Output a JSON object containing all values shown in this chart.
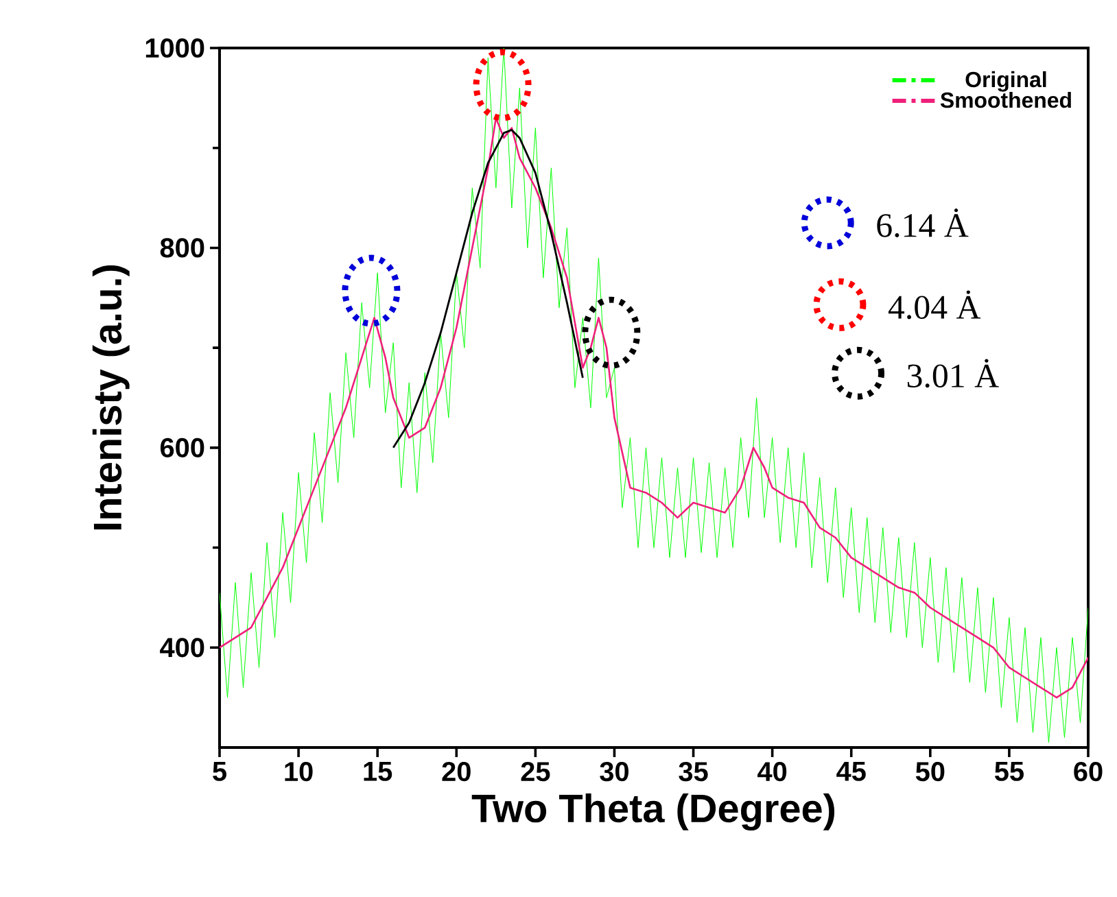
{
  "chart_data": {
    "type": "line",
    "xlabel": "Two Theta (Degree)",
    "ylabel": "Intenisty (a.u.)",
    "xlim": [
      5,
      60
    ],
    "ylim": [
      300,
      1000
    ],
    "xticks": [
      5,
      10,
      15,
      20,
      25,
      30,
      35,
      40,
      45,
      50,
      55,
      60
    ],
    "yticks": [
      400,
      {
        "value": 500,
        "label": null
      },
      600,
      {
        "value": 700,
        "label": null
      },
      800,
      {
        "value": 900,
        "label": null
      },
      1000
    ],
    "legend": "top right",
    "series": [
      {
        "name": "Original",
        "color": "#00ff00",
        "x": [
          5,
          5.5,
          6,
          6.5,
          7,
          7.5,
          8,
          8.5,
          9,
          9.5,
          10,
          10.5,
          11,
          11.5,
          12,
          12.5,
          13,
          13.5,
          14,
          14.5,
          15,
          15.5,
          16,
          16.5,
          17,
          17.5,
          18,
          18.5,
          19,
          19.5,
          20,
          20.5,
          21,
          21.5,
          22,
          22.5,
          23,
          23.5,
          24,
          24.5,
          25,
          25.5,
          26,
          26.5,
          27,
          27.5,
          28,
          28.5,
          29,
          29.5,
          30,
          30.5,
          31,
          31.5,
          32,
          32.5,
          33,
          33.5,
          34,
          34.5,
          35,
          35.5,
          36,
          36.5,
          37,
          37.5,
          38,
          38.5,
          39,
          39.5,
          40,
          40.5,
          41,
          41.5,
          42,
          42.5,
          43,
          43.5,
          44,
          44.5,
          45,
          45.5,
          46,
          46.5,
          47,
          47.5,
          48,
          48.5,
          49,
          49.5,
          50,
          50.5,
          51,
          51.5,
          52,
          52.5,
          53,
          53.5,
          54,
          54.5,
          55,
          55.5,
          56,
          56.5,
          57,
          57.5,
          58,
          58.5,
          59,
          59.5,
          60
        ],
        "values": [
          455,
          350,
          465,
          360,
          475,
          380,
          505,
          410,
          535,
          445,
          575,
          485,
          615,
          525,
          655,
          565,
          695,
          610,
          745,
          660,
          775,
          635,
          705,
          560,
          665,
          555,
          675,
          585,
          715,
          630,
          775,
          700,
          860,
          780,
          990,
          860,
          1000,
          840,
          960,
          800,
          920,
          770,
          880,
          740,
          820,
          660,
          730,
          640,
          790,
          650,
          680,
          540,
          610,
          500,
          600,
          500,
          590,
          490,
          580,
          490,
          590,
          495,
          585,
          490,
          580,
          500,
          610,
          530,
          650,
          530,
          610,
          505,
          600,
          500,
          595,
          480,
          570,
          465,
          560,
          450,
          540,
          435,
          530,
          425,
          520,
          415,
          510,
          410,
          505,
          400,
          490,
          385,
          480,
          375,
          470,
          365,
          460,
          355,
          450,
          340,
          430,
          325,
          420,
          315,
          410,
          305,
          400,
          310,
          410,
          325,
          440
        ]
      },
      {
        "name": "Smoothened",
        "color": "#f0207a",
        "x": [
          5,
          6,
          7,
          8,
          9,
          10,
          11,
          12,
          13,
          14,
          14.8,
          15.5,
          16,
          17,
          18,
          19,
          20,
          21,
          22,
          22.5,
          23,
          23.5,
          24,
          25,
          26,
          27,
          28,
          28.5,
          29,
          29.5,
          30,
          31,
          32,
          33,
          34,
          35,
          36,
          37,
          38,
          38.8,
          39.5,
          40,
          41,
          42,
          43,
          44,
          45,
          46,
          47,
          48,
          49,
          50,
          51,
          52,
          53,
          54,
          55,
          56,
          57,
          58,
          59,
          60
        ],
        "values": [
          400,
          410,
          420,
          450,
          480,
          520,
          560,
          600,
          640,
          690,
          730,
          690,
          650,
          610,
          620,
          660,
          720,
          800,
          880,
          930,
          910,
          920,
          890,
          860,
          820,
          770,
          680,
          700,
          730,
          700,
          630,
          560,
          555,
          545,
          530,
          545,
          540,
          535,
          560,
          600,
          580,
          560,
          550,
          545,
          520,
          510,
          490,
          480,
          470,
          460,
          455,
          440,
          430,
          420,
          410,
          400,
          380,
          370,
          360,
          350,
          360,
          390
        ]
      },
      {
        "type": "line",
        "color": "#000000",
        "x": [
          16,
          17,
          18,
          19,
          20,
          21,
          22,
          23,
          23.5,
          24,
          25,
          26,
          27,
          28
        ],
        "values": [
          600,
          625,
          665,
          715,
          775,
          835,
          885,
          915,
          918,
          910,
          875,
          815,
          745,
          670
        ]
      }
    ],
    "annotations": [
      "6.14 Ȧ",
      "4.04 Ȧ",
      "3.01 Ȧ"
    ]
  }
}
